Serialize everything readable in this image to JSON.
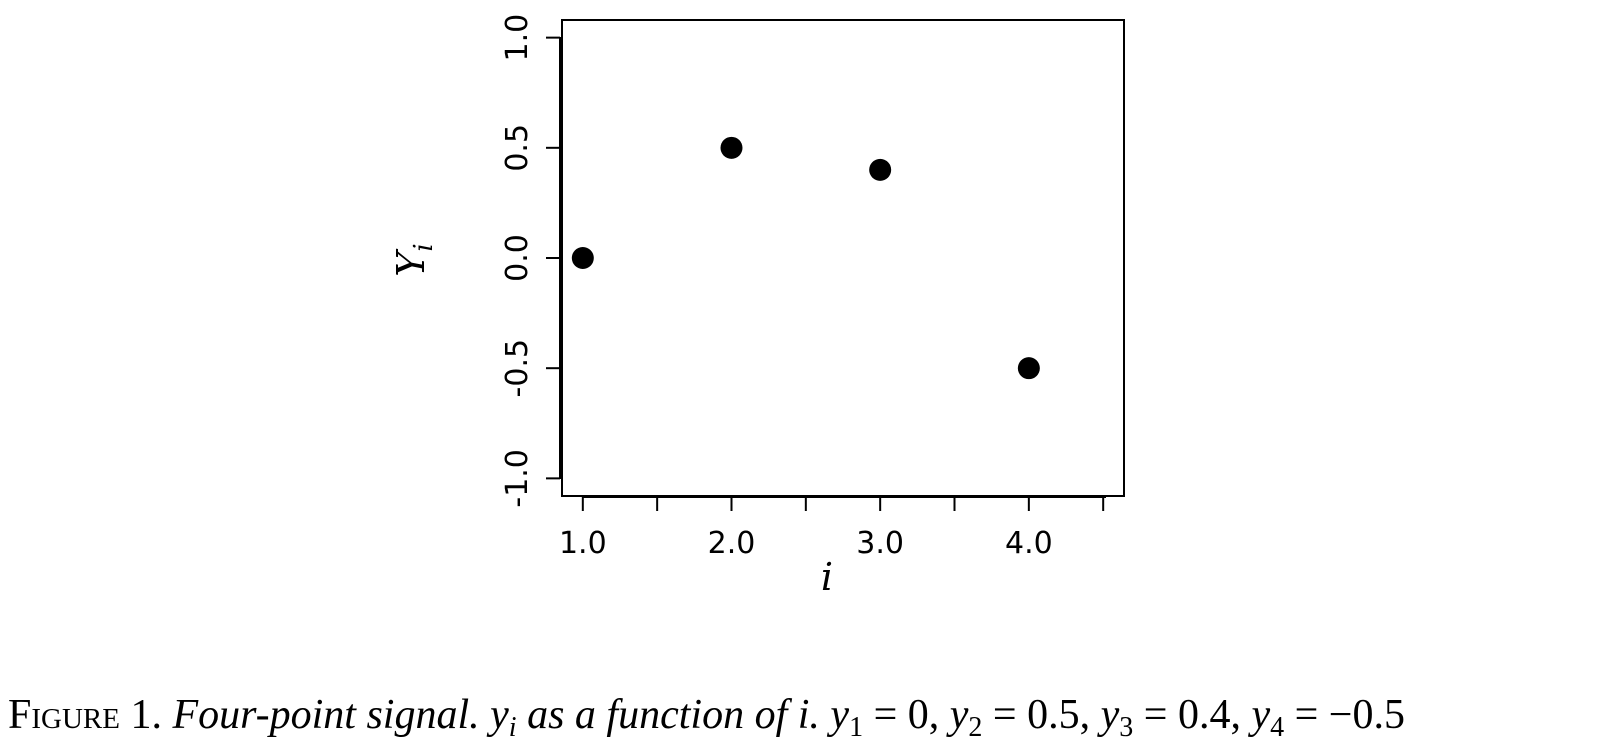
{
  "chart_data": {
    "type": "scatter",
    "series": [
      {
        "x": [
          1,
          2,
          3,
          4
        ],
        "y": [
          0,
          0.5,
          0.4,
          -0.5
        ]
      }
    ],
    "xlabel": "i",
    "ylabel": "Y",
    "ylabel_sub": "i",
    "xlim": [
      0.86,
      4.64
    ],
    "ylim": [
      -1.08,
      1.08
    ],
    "xticks": [
      1,
      1.5,
      2,
      2.5,
      3,
      3.5,
      4,
      4.5
    ],
    "xtick_labels": [
      "1.0",
      "",
      "2.0",
      "",
      "3.0",
      "",
      "4.0",
      ""
    ],
    "yticks": [
      -1,
      -0.5,
      0,
      0.5,
      1
    ],
    "ytick_labels": [
      "-1.0",
      "-0.5",
      "0.0",
      "0.5",
      "1.0"
    ],
    "grid": false,
    "marker_color": "#000000"
  },
  "caption": {
    "figure_label": "Figure 1.",
    "title_part": "Four-point signal.",
    "y": "y",
    "i": "i",
    "as_function": "as a function of i.",
    "y1_sub": "1",
    "y1_val": "= 0,",
    "y2_sub": "2",
    "y2_val": "= 0.5,",
    "y3_sub": "3",
    "y3_val": "= 0.4,",
    "y4_sub": "4",
    "y4_val": "= −0.5"
  }
}
